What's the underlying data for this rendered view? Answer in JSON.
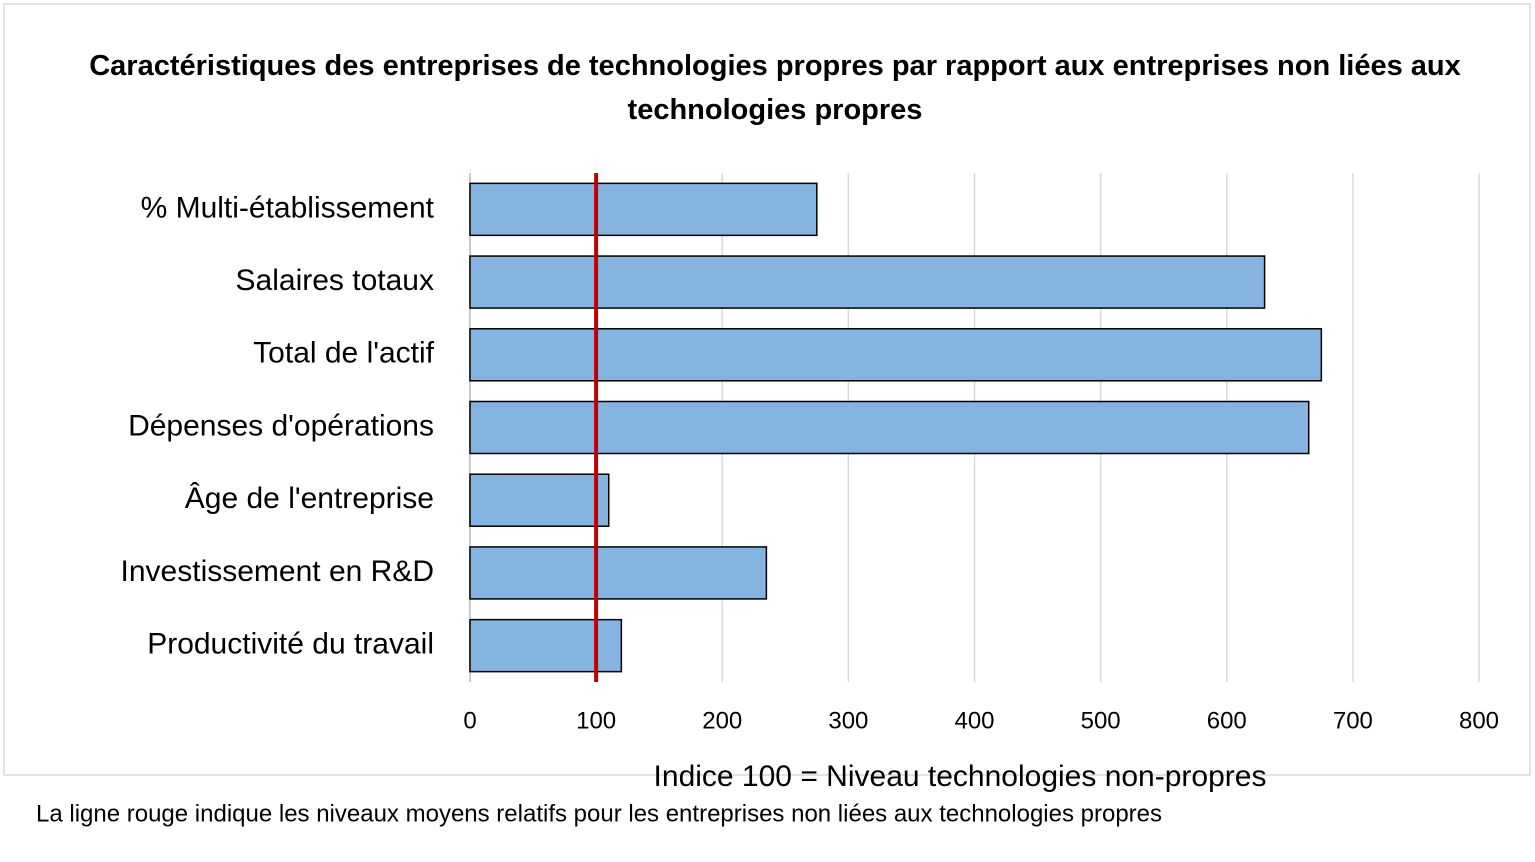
{
  "chart_data": {
    "type": "bar",
    "orientation": "horizontal",
    "title": "Caractéristiques des entreprises de technologies propres par rapport aux entreprises non liées aux technologies propres",
    "categories": [
      "% Multi-établissement",
      "Salaires totaux",
      "Total de l'actif",
      "Dépenses d'opérations",
      "Âge de l'entreprise",
      "Investissement en R&D",
      "Productivité du travail"
    ],
    "values": [
      275,
      630,
      675,
      665,
      110,
      235,
      120
    ],
    "color": "#85b4e0",
    "xlim": [
      0,
      800
    ],
    "xticks": [
      0,
      100,
      200,
      300,
      400,
      500,
      600,
      700,
      800
    ],
    "grid": true,
    "x_label": "Indice 100 = Niveau technologies non-propres",
    "reference_line": {
      "value": 100,
      "color": "#c00000"
    },
    "note": "La ligne rouge indique les niveaux moyens relatifs pour les entreprises non liées aux technologies propres"
  }
}
